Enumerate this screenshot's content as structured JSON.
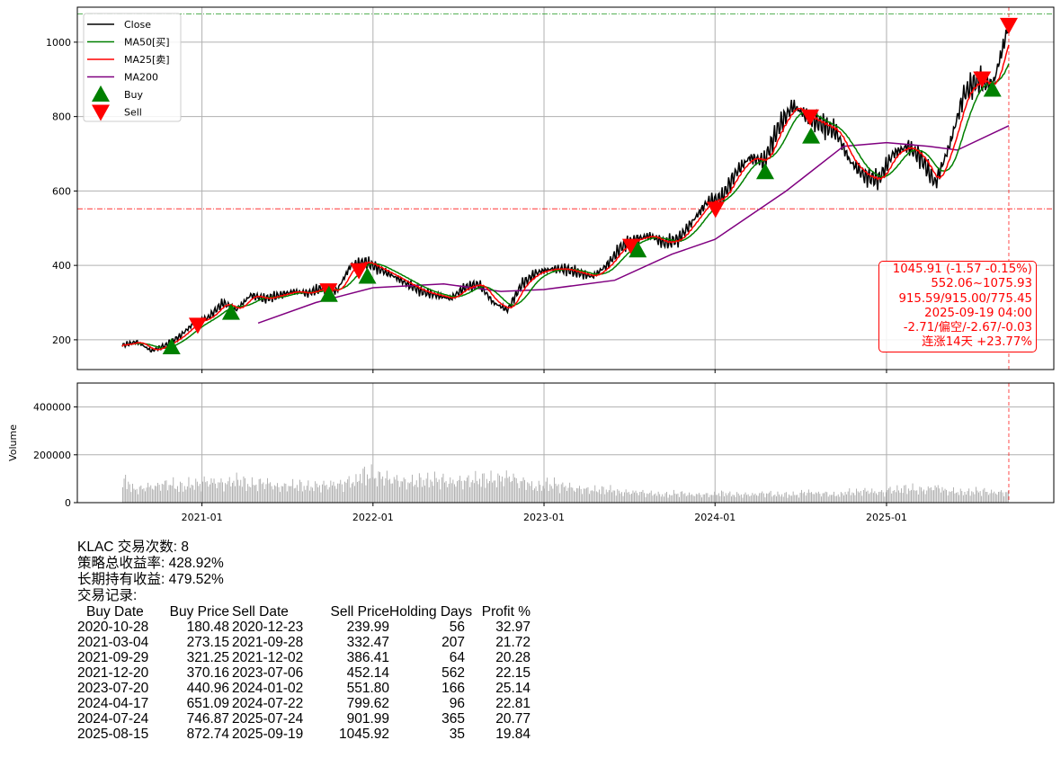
{
  "chart_data": [
    {
      "type": "line",
      "ticker": "KLAC",
      "ylim": [
        120,
        1094
      ],
      "xlim": [
        "2020-04-10",
        "2025-12-24"
      ],
      "yticks": [
        200,
        400,
        600,
        800,
        1000
      ],
      "xticks": [
        "2021-01",
        "2022-01",
        "2023-01",
        "2024-01",
        "2025-01"
      ],
      "grid": true,
      "legend_placement": "top-left",
      "legend": [
        "Close",
        "MA50[买]",
        "MA25[卖]",
        "MA200",
        "Buy",
        "Sell"
      ],
      "colors": {
        "Close": "#000000",
        "MA50": "#008000",
        "MA25": "#ff0000",
        "MA200": "#800080",
        "Buy": "#008000",
        "Sell": "#ff0000"
      },
      "close": [
        [
          "2020-07-15",
          185
        ],
        [
          "2020-08-15",
          195
        ],
        [
          "2020-09-15",
          170
        ],
        [
          "2020-10-15",
          185
        ],
        [
          "2020-11-15",
          210
        ],
        [
          "2020-12-15",
          245
        ],
        [
          "2021-01-15",
          260
        ],
        [
          "2021-02-15",
          300
        ],
        [
          "2021-03-15",
          280
        ],
        [
          "2021-04-15",
          320
        ],
        [
          "2021-05-15",
          310
        ],
        [
          "2021-06-15",
          320
        ],
        [
          "2021-07-15",
          330
        ],
        [
          "2021-08-15",
          325
        ],
        [
          "2021-09-15",
          340
        ],
        [
          "2021-10-15",
          330
        ],
        [
          "2021-11-15",
          400
        ],
        [
          "2021-12-15",
          410
        ],
        [
          "2022-01-15",
          390
        ],
        [
          "2022-02-15",
          370
        ],
        [
          "2022-03-15",
          350
        ],
        [
          "2022-04-15",
          330
        ],
        [
          "2022-05-15",
          320
        ],
        [
          "2022-06-15",
          310
        ],
        [
          "2022-07-15",
          340
        ],
        [
          "2022-08-15",
          350
        ],
        [
          "2022-09-15",
          300
        ],
        [
          "2022-10-15",
          280
        ],
        [
          "2022-11-15",
          350
        ],
        [
          "2022-12-15",
          380
        ],
        [
          "2023-01-15",
          390
        ],
        [
          "2023-02-15",
          390
        ],
        [
          "2023-03-15",
          380
        ],
        [
          "2023-04-15",
          370
        ],
        [
          "2023-05-15",
          400
        ],
        [
          "2023-06-15",
          450
        ],
        [
          "2023-07-15",
          470
        ],
        [
          "2023-08-15",
          480
        ],
        [
          "2023-09-15",
          460
        ],
        [
          "2023-10-15",
          470
        ],
        [
          "2023-11-15",
          520
        ],
        [
          "2023-12-15",
          570
        ],
        [
          "2024-01-15",
          580
        ],
        [
          "2024-02-15",
          650
        ],
        [
          "2024-03-15",
          690
        ],
        [
          "2024-04-15",
          680
        ],
        [
          "2024-05-15",
          770
        ],
        [
          "2024-06-15",
          830
        ],
        [
          "2024-07-15",
          800
        ],
        [
          "2024-08-15",
          780
        ],
        [
          "2024-09-15",
          760
        ],
        [
          "2024-10-15",
          680
        ],
        [
          "2024-11-15",
          640
        ],
        [
          "2024-12-15",
          630
        ],
        [
          "2025-01-15",
          700
        ],
        [
          "2025-02-15",
          720
        ],
        [
          "2025-03-15",
          690
        ],
        [
          "2025-04-15",
          620
        ],
        [
          "2025-05-15",
          720
        ],
        [
          "2025-06-15",
          860
        ],
        [
          "2025-07-15",
          900
        ],
        [
          "2025-08-15",
          880
        ],
        [
          "2025-09-19",
          1045.91
        ]
      ],
      "ma200": [
        [
          "2021-05-01",
          245
        ],
        [
          "2021-09-01",
          300
        ],
        [
          "2022-01-01",
          340
        ],
        [
          "2022-06-01",
          350
        ],
        [
          "2022-10-01",
          330
        ],
        [
          "2023-01-01",
          335
        ],
        [
          "2023-06-01",
          360
        ],
        [
          "2023-10-01",
          430
        ],
        [
          "2024-01-01",
          470
        ],
        [
          "2024-06-01",
          600
        ],
        [
          "2024-10-01",
          720
        ],
        [
          "2025-01-01",
          730
        ],
        [
          "2025-04-01",
          720
        ],
        [
          "2025-06-01",
          710
        ],
        [
          "2025-09-19",
          775.45
        ]
      ],
      "hlines": [
        {
          "value": 1075.93,
          "color": "#2ca02c",
          "style": "dash-dot"
        },
        {
          "value": 552.06,
          "color": "#ff0000",
          "style": "dash-dot"
        }
      ],
      "vline": {
        "date": "2025-09-19",
        "color": "#ff0000",
        "style": "dashed"
      },
      "annotation": [
        "1045.91 (-1.57 -0.15%)",
        "552.06~1075.93",
        "915.59/915.00/775.45",
        "2025-09-19 04:00",
        "-2.71/偏空/-2.67/-0.03",
        "连涨14天 +23.77%"
      ]
    },
    {
      "type": "bar",
      "ylabel": "Volume",
      "ylim": [
        0,
        500000
      ],
      "yticks": [
        0,
        200000,
        400000
      ],
      "color": "#aaaaaa",
      "monthly_volume": [
        [
          "2020-07",
          90000
        ],
        [
          "2020-08",
          60000
        ],
        [
          "2020-09",
          70000
        ],
        [
          "2020-10",
          80000
        ],
        [
          "2020-11",
          70000
        ],
        [
          "2020-12",
          80000
        ],
        [
          "2021-01",
          90000
        ],
        [
          "2021-02",
          85000
        ],
        [
          "2021-03",
          95000
        ],
        [
          "2021-04",
          80000
        ],
        [
          "2021-05",
          85000
        ],
        [
          "2021-06",
          70000
        ],
        [
          "2021-07",
          75000
        ],
        [
          "2021-08",
          70000
        ],
        [
          "2021-09",
          75000
        ],
        [
          "2021-10",
          80000
        ],
        [
          "2021-11",
          90000
        ],
        [
          "2021-12",
          120000
        ],
        [
          "2022-01",
          110000
        ],
        [
          "2022-02",
          100000
        ],
        [
          "2022-03",
          90000
        ],
        [
          "2022-04",
          95000
        ],
        [
          "2022-05",
          100000
        ],
        [
          "2022-06",
          90000
        ],
        [
          "2022-07",
          95000
        ],
        [
          "2022-08",
          100000
        ],
        [
          "2022-09",
          100000
        ],
        [
          "2022-10",
          110000
        ],
        [
          "2022-11",
          90000
        ],
        [
          "2022-12",
          70000
        ],
        [
          "2023-01",
          80000
        ],
        [
          "2023-02",
          70000
        ],
        [
          "2023-03",
          60000
        ],
        [
          "2023-04",
          55000
        ],
        [
          "2023-05",
          55000
        ],
        [
          "2023-06",
          45000
        ],
        [
          "2023-07",
          45000
        ],
        [
          "2023-08",
          40000
        ],
        [
          "2023-09",
          35000
        ],
        [
          "2023-10",
          40000
        ],
        [
          "2023-11",
          35000
        ],
        [
          "2023-12",
          35000
        ],
        [
          "2024-01",
          40000
        ],
        [
          "2024-02",
          35000
        ],
        [
          "2024-03",
          35000
        ],
        [
          "2024-04",
          40000
        ],
        [
          "2024-05",
          35000
        ],
        [
          "2024-06",
          35000
        ],
        [
          "2024-07",
          45000
        ],
        [
          "2024-08",
          40000
        ],
        [
          "2024-09",
          35000
        ],
        [
          "2024-10",
          45000
        ],
        [
          "2024-11",
          50000
        ],
        [
          "2024-12",
          45000
        ],
        [
          "2025-01",
          55000
        ],
        [
          "2025-02",
          60000
        ],
        [
          "2025-03",
          55000
        ],
        [
          "2025-04",
          65000
        ],
        [
          "2025-05",
          50000
        ],
        [
          "2025-06",
          45000
        ],
        [
          "2025-07",
          50000
        ],
        [
          "2025-08",
          45000
        ],
        [
          "2025-09",
          45000
        ]
      ]
    }
  ],
  "summary": {
    "trade_count": "KLAC 交易次数: 8",
    "strategy_return": "策略总收益率: 428.92%",
    "buy_hold_return": "长期持有收益: 479.52%",
    "records_label": "交易记录:"
  },
  "trades": {
    "headers": [
      "Buy Date",
      "Buy Price",
      "Sell Date",
      "Sell Price",
      "Holding Days",
      "Profit %"
    ],
    "rows": [
      [
        "2020-10-28",
        "180.48",
        "2020-12-23",
        "239.99",
        "56",
        "32.97"
      ],
      [
        "2021-03-04",
        "273.15",
        "2021-09-28",
        "332.47",
        "207",
        "21.72"
      ],
      [
        "2021-09-29",
        "321.25",
        "2021-12-02",
        "386.41",
        "64",
        "20.28"
      ],
      [
        "2021-12-20",
        "370.16",
        "2023-07-06",
        "452.14",
        "562",
        "22.15"
      ],
      [
        "2023-07-20",
        "440.96",
        "2024-01-02",
        "551.80",
        "166",
        "25.14"
      ],
      [
        "2024-04-17",
        "651.09",
        "2024-07-22",
        "799.62",
        "96",
        "22.81"
      ],
      [
        "2024-07-24",
        "746.87",
        "2025-07-24",
        "901.99",
        "365",
        "20.77"
      ],
      [
        "2025-08-15",
        "872.74",
        "2025-09-19",
        "1045.92",
        "35",
        "19.84"
      ]
    ]
  }
}
